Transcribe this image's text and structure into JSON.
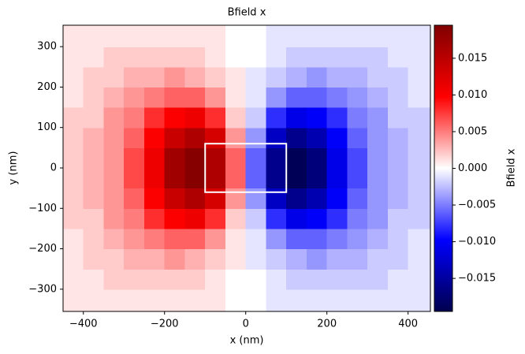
{
  "chart_data": {
    "type": "heatmap",
    "title": "Bfield x",
    "x_label": "x (nm)",
    "y_label": "y (nm)",
    "colorbar_label": "Bfield x",
    "colormap": "seismic",
    "clim": [
      -0.0195,
      0.0195
    ],
    "colorbar_ticks": [
      {
        "value": -0.015,
        "label": "−0.015"
      },
      {
        "value": -0.01,
        "label": "−0.010"
      },
      {
        "value": -0.005,
        "label": "−0.005"
      },
      {
        "value": 0,
        "label": "0.000"
      },
      0.005,
      {
        "value": 0.01,
        "label": "0.010"
      },
      0.015
    ],
    "xlim": [
      -450,
      455
    ],
    "ylim": [
      -355,
      353
    ],
    "xticks": [
      {
        "value": -400,
        "label": "−400"
      },
      {
        "value": -200,
        "label": "−200"
      },
      0,
      200,
      400
    ],
    "yticks": [
      {
        "value": -300,
        "label": "−300"
      },
      {
        "value": -200,
        "label": "−200"
      },
      {
        "value": -100,
        "label": "−100"
      },
      0,
      100,
      200,
      300
    ],
    "x": [
      -425,
      -375,
      -325,
      -275,
      -225,
      -175,
      -125,
      -75,
      -25,
      25,
      75,
      125,
      175,
      225,
      275,
      325,
      375,
      425
    ],
    "y": [
      -325,
      -275,
      -225,
      -175,
      -125,
      -75,
      -25,
      25,
      75,
      125,
      175,
      225,
      275,
      325
    ],
    "z": [
      [
        0.001,
        0.001,
        0.001,
        0.001,
        0.001,
        0.001,
        0.001,
        0.001,
        0,
        0,
        -0.001,
        -0.001,
        -0.001,
        -0.001,
        -0.001,
        -0.001,
        -0.001,
        -0.001
      ],
      [
        0.001,
        0.001,
        0.002,
        0.002,
        0.002,
        0.002,
        0.002,
        0.001,
        0,
        0,
        -0.001,
        -0.002,
        -0.002,
        -0.002,
        -0.002,
        -0.002,
        -0.001,
        -0.001
      ],
      [
        0.001,
        0.002,
        0.002,
        0.003,
        0.003,
        0.004,
        0.003,
        0.002,
        0.001,
        -0.001,
        -0.002,
        -0.003,
        -0.004,
        -0.003,
        -0.003,
        -0.002,
        -0.002,
        -0.001
      ],
      [
        0.001,
        0.002,
        0.003,
        0.004,
        0.005,
        0.006,
        0.006,
        0.004,
        0.001,
        -0.001,
        -0.004,
        -0.006,
        -0.006,
        -0.005,
        -0.004,
        -0.003,
        -0.002,
        -0.001
      ],
      [
        0.002,
        0.002,
        0.004,
        0.005,
        0.008,
        0.01,
        0.011,
        0.008,
        0.002,
        -0.002,
        -0.008,
        -0.011,
        -0.01,
        -0.008,
        -0.005,
        -0.004,
        -0.002,
        -0.002
      ],
      [
        0.002,
        0.003,
        0.004,
        0.006,
        0.01,
        0.014,
        0.016,
        0.013,
        0.004,
        -0.004,
        -0.013,
        -0.016,
        -0.014,
        -0.01,
        -0.006,
        -0.004,
        -0.003,
        -0.002
      ],
      [
        0.002,
        0.003,
        0.004,
        0.007,
        0.011,
        0.017,
        0.019,
        0.016,
        0.006,
        -0.006,
        -0.016,
        -0.019,
        -0.017,
        -0.011,
        -0.007,
        -0.004,
        -0.003,
        -0.002
      ],
      [
        0.002,
        0.003,
        0.004,
        0.007,
        0.011,
        0.017,
        0.019,
        0.016,
        0.006,
        -0.006,
        -0.016,
        -0.019,
        -0.017,
        -0.011,
        -0.007,
        -0.004,
        -0.003,
        -0.002
      ],
      [
        0.002,
        0.003,
        0.004,
        0.006,
        0.01,
        0.014,
        0.016,
        0.013,
        0.004,
        -0.004,
        -0.013,
        -0.016,
        -0.014,
        -0.01,
        -0.006,
        -0.004,
        -0.003,
        -0.002
      ],
      [
        0.002,
        0.002,
        0.004,
        0.005,
        0.008,
        0.01,
        0.011,
        0.008,
        0.002,
        -0.002,
        -0.008,
        -0.011,
        -0.01,
        -0.008,
        -0.005,
        -0.004,
        -0.002,
        -0.002
      ],
      [
        0.001,
        0.002,
        0.003,
        0.004,
        0.005,
        0.006,
        0.006,
        0.004,
        0.001,
        -0.001,
        -0.004,
        -0.006,
        -0.006,
        -0.005,
        -0.004,
        -0.003,
        -0.002,
        -0.001
      ],
      [
        0.001,
        0.002,
        0.002,
        0.003,
        0.003,
        0.004,
        0.003,
        0.002,
        0.001,
        -0.001,
        -0.002,
        -0.003,
        -0.004,
        -0.003,
        -0.003,
        -0.002,
        -0.002,
        -0.001
      ],
      [
        0.001,
        0.001,
        0.002,
        0.002,
        0.002,
        0.002,
        0.002,
        0.001,
        0,
        0,
        -0.001,
        -0.002,
        -0.002,
        -0.002,
        -0.002,
        -0.002,
        -0.001,
        -0.001
      ],
      [
        0.001,
        0.001,
        0.001,
        0.001,
        0.001,
        0.001,
        0.001,
        0.001,
        0,
        0,
        -0.001,
        -0.001,
        -0.001,
        -0.001,
        -0.001,
        -0.001,
        -0.001,
        -0.001
      ]
    ],
    "outline": {
      "x": [
        -100,
        100
      ],
      "y": [
        -60,
        60
      ],
      "color": "#ffffff"
    }
  }
}
